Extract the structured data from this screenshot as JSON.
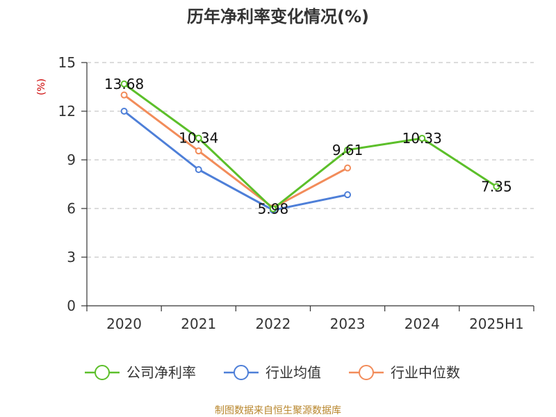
{
  "chart_data": {
    "type": "line",
    "title": "历年净利率变化情况(%)",
    "unit_label": "(%)",
    "categories": [
      "2020",
      "2021",
      "2022",
      "2023",
      "2024",
      "2025H1"
    ],
    "ylim": [
      0,
      15
    ],
    "yticks": [
      0,
      3,
      6,
      9,
      12,
      15
    ],
    "grid": true,
    "legend_position": "bottom",
    "series": [
      {
        "name": "公司净利率",
        "color": "#5cbf2a",
        "values": [
          13.68,
          10.34,
          5.98,
          9.61,
          10.33,
          7.35
        ],
        "labels": [
          "13.68",
          "10.34",
          "5.98",
          "9.61",
          "10.33",
          "7.35"
        ]
      },
      {
        "name": "行业均值",
        "color": "#4e7fd8",
        "values": [
          12.0,
          8.4,
          5.9,
          6.85,
          null,
          null
        ]
      },
      {
        "name": "行业中位数",
        "color": "#f28c5a",
        "values": [
          13.0,
          9.55,
          6.05,
          8.5,
          null,
          null
        ]
      }
    ],
    "source": "制图数据来自恒生聚源数据库"
  }
}
